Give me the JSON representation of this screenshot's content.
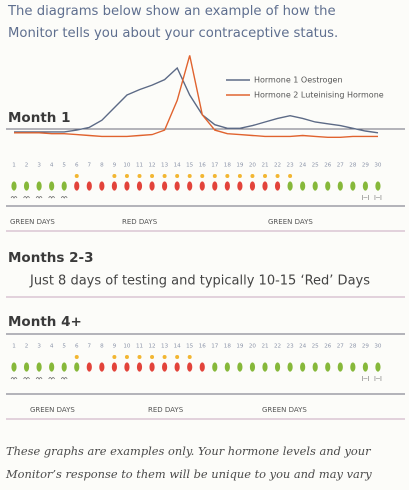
{
  "intro": [
    "The diagrams below show an example of how the",
    "Monitor tells you about your contraceptive status."
  ],
  "month1": {
    "heading": "Month 1",
    "chart": {
      "type": "line",
      "x": [
        1,
        2,
        3,
        4,
        5,
        6,
        7,
        8,
        9,
        10,
        11,
        12,
        13,
        14,
        15,
        16,
        17,
        18,
        19,
        20,
        21,
        22,
        23,
        24,
        25,
        26,
        27,
        28,
        29,
        30
      ],
      "ylim": [
        0,
        100
      ],
      "series": [
        {
          "name": "Hormone 1 Oestrogen",
          "color": "#5c6a86",
          "values": [
            9,
            9,
            9,
            9,
            9,
            11,
            14,
            22,
            36,
            50,
            56,
            61,
            67,
            80,
            50,
            28,
            17,
            13,
            13,
            16,
            20,
            24,
            27,
            24,
            20,
            18,
            16,
            13,
            10,
            8
          ]
        },
        {
          "name": "Hormone 2 Luteinising Hormone",
          "color": "#e0632f",
          "values": [
            8,
            8,
            8,
            7,
            7,
            6,
            5,
            4,
            4,
            4,
            5,
            6,
            11,
            44,
            94,
            28,
            11,
            7,
            6,
            5,
            4,
            4,
            4,
            5,
            4,
            3,
            3,
            4,
            4,
            4
          ]
        }
      ]
    },
    "days": [
      1,
      2,
      3,
      4,
      5,
      6,
      7,
      8,
      9,
      10,
      11,
      12,
      13,
      14,
      15,
      16,
      17,
      18,
      19,
      20,
      21,
      22,
      23,
      24,
      25,
      26,
      27,
      28,
      29,
      30
    ],
    "day_status": [
      "green",
      "green",
      "green",
      "green",
      "green",
      "red",
      "red",
      "red",
      "red",
      "red",
      "red",
      "red",
      "red",
      "red",
      "red",
      "red",
      "red",
      "red",
      "red",
      "red",
      "red",
      "red",
      "green",
      "green",
      "green",
      "green",
      "green",
      "green",
      "green",
      "green"
    ],
    "test_days": [
      6,
      9,
      10,
      11,
      12,
      13,
      14,
      15,
      16,
      17,
      18,
      19,
      20,
      21,
      22,
      23
    ],
    "phase_labels": [
      "GREEN DAYS",
      "RED DAYS",
      "GREEN DAYS"
    ]
  },
  "months2_3": {
    "heading": "Months 2-3",
    "text": "Just 8 days of testing and typically 10-15 ‘Red’ Days"
  },
  "month4": {
    "heading": "Month 4+",
    "days": [
      1,
      2,
      3,
      4,
      5,
      6,
      7,
      8,
      9,
      10,
      11,
      12,
      13,
      14,
      15,
      16,
      17,
      18,
      19,
      20,
      21,
      22,
      23,
      24,
      25,
      26,
      27,
      28,
      29,
      30
    ],
    "day_status": [
      "green",
      "green",
      "green",
      "green",
      "green",
      "green",
      "red",
      "red",
      "red",
      "red",
      "red",
      "red",
      "red",
      "red",
      "red",
      "red",
      "green",
      "green",
      "green",
      "green",
      "green",
      "green",
      "green",
      "green",
      "green",
      "green",
      "green",
      "green",
      "green",
      "green"
    ],
    "test_days": [
      6,
      9,
      10,
      11,
      12,
      13,
      14,
      15
    ],
    "phase_labels": [
      "GREEN DAYS",
      "RED DAYS",
      "GREEN DAYS"
    ]
  },
  "footer": [
    "These graphs are examples only. Your hormone levels and your",
    "Monitor’s response to them will be unique to you and may vary"
  ]
}
